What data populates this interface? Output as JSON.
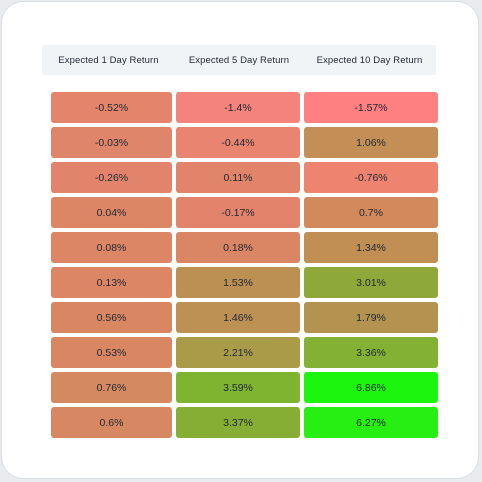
{
  "headers": [
    "Expected 1 Day Return",
    "Expected 5 Day Return",
    "Expected 10 Day Return"
  ],
  "rows": [
    [
      {
        "v": "-0.52%",
        "c": "#e4846a"
      },
      {
        "v": "-1.4%",
        "c": "#f4837c"
      },
      {
        "v": "-1.57%",
        "c": "#fe8080"
      }
    ],
    [
      {
        "v": "-0.03%",
        "c": "#df856a"
      },
      {
        "v": "-0.44%",
        "c": "#e8846f"
      },
      {
        "v": "1.06%",
        "c": "#c48f56"
      }
    ],
    [
      {
        "v": "-0.26%",
        "c": "#e2846c"
      },
      {
        "v": "0.11%",
        "c": "#e28469"
      },
      {
        "v": "-0.76%",
        "c": "#ee836f"
      }
    ],
    [
      {
        "v": "0.04%",
        "c": "#dc8665"
      },
      {
        "v": "-0.17%",
        "c": "#e2846b"
      },
      {
        "v": "0.7%",
        "c": "#d28a5c"
      }
    ],
    [
      {
        "v": "0.08%",
        "c": "#dc8666"
      },
      {
        "v": "0.18%",
        "c": "#da8664"
      },
      {
        "v": "1.34%",
        "c": "#c18f54"
      }
    ],
    [
      {
        "v": "0.13%",
        "c": "#dc8666"
      },
      {
        "v": "1.53%",
        "c": "#bb9052"
      },
      {
        "v": "3.01%",
        "c": "#8ea93a"
      }
    ],
    [
      {
        "v": "0.56%",
        "c": "#d98763"
      },
      {
        "v": "1.46%",
        "c": "#bd9053"
      },
      {
        "v": "1.79%",
        "c": "#b4924f"
      }
    ],
    [
      {
        "v": "0.53%",
        "c": "#d98763"
      },
      {
        "v": "2.21%",
        "c": "#a99b47"
      },
      {
        "v": "3.36%",
        "c": "#83b133"
      }
    ],
    [
      {
        "v": "0.76%",
        "c": "#d48961"
      },
      {
        "v": "3.59%",
        "c": "#7fb431"
      },
      {
        "v": "6.86%",
        "c": "#1cf60e"
      }
    ],
    [
      {
        "v": "0.6%",
        "c": "#d78862"
      },
      {
        "v": "3.37%",
        "c": "#86ae35"
      },
      {
        "v": "6.27%",
        "c": "#27ef12"
      }
    ]
  ]
}
